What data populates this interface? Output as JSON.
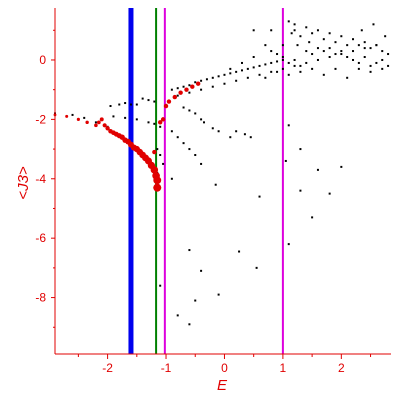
{
  "colors": {
    "axis": "#e00000",
    "black_points": "#000000",
    "red_points": "#e00000",
    "line_blue": "#0000ee",
    "line_green": "#008000",
    "line_magenta": "#dd00dd",
    "background": "#ffffff"
  },
  "chart_data": {
    "type": "scatter",
    "title": "",
    "xlabel": "E",
    "ylabel": "<J3>",
    "xlim": [
      -2.9,
      2.85
    ],
    "ylim": [
      -9.9,
      1.75
    ],
    "x_ticks": [
      -2,
      -1,
      0,
      1,
      2
    ],
    "y_ticks": [
      0,
      -2,
      -4,
      -6,
      -8
    ],
    "grid": false,
    "vertical_lines": [
      {
        "x": -1.6,
        "color": "#0000ee",
        "width": "thick"
      },
      {
        "x": -1.17,
        "color": "#008000",
        "width": "thin"
      },
      {
        "x": -1.02,
        "color": "#dd00dd",
        "width": "thin"
      },
      {
        "x": 1.0,
        "color": "#dd00dd",
        "width": "thin"
      }
    ],
    "series": [
      {
        "marker": "small dot",
        "color": "#000000",
        "points": [
          [
            -2.9,
            -1.8
          ],
          [
            -2.6,
            -1.85
          ],
          [
            -2.4,
            -1.95
          ],
          [
            -2.2,
            -2.1
          ],
          [
            -2.0,
            -2.25
          ],
          [
            -1.95,
            -1.55
          ],
          [
            -1.8,
            -1.5
          ],
          [
            -1.7,
            -1.45
          ],
          [
            -1.6,
            -1.5
          ],
          [
            -1.5,
            -1.5
          ],
          [
            -1.9,
            -1.9
          ],
          [
            -1.7,
            -1.95
          ],
          [
            -1.5,
            -2.0
          ],
          [
            -1.3,
            -2.1
          ],
          [
            -1.2,
            -2.15
          ],
          [
            -1.1,
            -2.25
          ],
          [
            -1.4,
            -1.3
          ],
          [
            -1.3,
            -1.35
          ],
          [
            -1.2,
            -1.4
          ],
          [
            -1.15,
            -3.0
          ],
          [
            -1.1,
            -3.2
          ],
          [
            -1.05,
            -3.5
          ],
          [
            -1.15,
            -3.8
          ],
          [
            -0.9,
            -4.0
          ],
          [
            -1.1,
            -7.6
          ],
          [
            -0.8,
            -8.6
          ],
          [
            -0.6,
            -8.9
          ],
          [
            -0.6,
            -6.4
          ],
          [
            -0.5,
            -8.1
          ],
          [
            -0.4,
            -7.1
          ],
          [
            -0.15,
            -4.2
          ],
          [
            -0.1,
            -7.9
          ],
          [
            0.25,
            -6.45
          ],
          [
            0.55,
            -7.0
          ],
          [
            0.6,
            -4.6
          ],
          [
            1.1,
            -6.2
          ],
          [
            1.3,
            -4.4
          ],
          [
            1.5,
            -5.3
          ],
          [
            1.6,
            -3.7
          ],
          [
            1.8,
            -4.5
          ],
          [
            2.0,
            -3.6
          ],
          [
            -0.9,
            -1.0
          ],
          [
            -0.8,
            -0.95
          ],
          [
            -0.7,
            -0.9
          ],
          [
            -0.6,
            -0.85
          ],
          [
            -0.5,
            -0.75
          ],
          [
            -0.4,
            -0.7
          ],
          [
            -0.3,
            -0.65
          ],
          [
            -0.2,
            -0.6
          ],
          [
            -0.1,
            -0.55
          ],
          [
            0.0,
            -0.5
          ],
          [
            0.1,
            -0.45
          ],
          [
            0.2,
            -0.4
          ],
          [
            0.3,
            -0.35
          ],
          [
            0.4,
            -0.3
          ],
          [
            0.5,
            -0.25
          ],
          [
            0.6,
            -0.2
          ],
          [
            0.7,
            -0.15
          ],
          [
            0.8,
            -0.1
          ],
          [
            0.9,
            -0.05
          ],
          [
            1.0,
            0.0
          ],
          [
            -0.8,
            -1.2
          ],
          [
            -0.6,
            -1.1
          ],
          [
            -0.4,
            -1.0
          ],
          [
            -0.2,
            -0.9
          ],
          [
            0.0,
            -0.8
          ],
          [
            0.2,
            -0.7
          ],
          [
            0.4,
            -0.6
          ],
          [
            0.6,
            -0.5
          ],
          [
            0.8,
            -0.4
          ],
          [
            1.0,
            -0.3
          ],
          [
            1.2,
            -0.2
          ],
          [
            1.4,
            -0.1
          ],
          [
            1.6,
            0.0
          ],
          [
            1.8,
            0.1
          ],
          [
            2.0,
            0.2
          ],
          [
            2.2,
            0.3
          ],
          [
            2.4,
            0.4
          ],
          [
            2.6,
            0.5
          ],
          [
            -0.7,
            -1.6
          ],
          [
            -0.6,
            -1.7
          ],
          [
            -0.5,
            -1.8
          ],
          [
            -0.4,
            -2.0
          ],
          [
            -0.35,
            -2.1
          ],
          [
            -0.2,
            -2.3
          ],
          [
            -0.1,
            -2.4
          ],
          [
            0.1,
            -2.6
          ],
          [
            0.2,
            -2.4
          ],
          [
            0.35,
            -2.5
          ],
          [
            0.45,
            -2.6
          ],
          [
            -0.9,
            -2.4
          ],
          [
            -0.8,
            -2.6
          ],
          [
            -0.7,
            -2.8
          ],
          [
            -0.6,
            -3.0
          ],
          [
            -0.5,
            -3.2
          ],
          [
            -0.4,
            -3.5
          ],
          [
            1.0,
            0.5
          ],
          [
            1.1,
            1.3
          ],
          [
            1.15,
            0.9
          ],
          [
            1.2,
            1.0
          ],
          [
            1.3,
            0.8
          ],
          [
            1.4,
            1.1
          ],
          [
            1.5,
            0.9
          ],
          [
            1.6,
            1.0
          ],
          [
            1.7,
            0.7
          ],
          [
            1.8,
            0.9
          ],
          [
            1.9,
            0.6
          ],
          [
            2.0,
            0.8
          ],
          [
            2.1,
            0.5
          ],
          [
            2.2,
            0.7
          ],
          [
            2.3,
            0.5
          ],
          [
            2.4,
            0.6
          ],
          [
            2.5,
            0.4
          ],
          [
            2.6,
            0.5
          ],
          [
            2.7,
            0.3
          ],
          [
            2.8,
            0.2
          ],
          [
            0.7,
            0.5
          ],
          [
            0.8,
            0.3
          ],
          [
            0.9,
            0.2
          ],
          [
            1.0,
            0.1
          ],
          [
            1.1,
            -0.1
          ],
          [
            1.2,
            0.0
          ],
          [
            1.3,
            -0.2
          ],
          [
            1.4,
            0.3
          ],
          [
            1.5,
            0.2
          ],
          [
            1.6,
            0.4
          ],
          [
            1.7,
            0.3
          ],
          [
            1.8,
            0.4
          ],
          [
            1.9,
            0.2
          ],
          [
            2.0,
            0.3
          ],
          [
            2.1,
            0.1
          ],
          [
            2.2,
            0.0
          ],
          [
            2.3,
            -0.1
          ],
          [
            2.4,
            0.1
          ],
          [
            2.5,
            -0.2
          ],
          [
            2.6,
            -0.1
          ],
          [
            2.7,
            0.0
          ],
          [
            2.8,
            -0.2
          ],
          [
            0.1,
            -0.3
          ],
          [
            0.3,
            -0.1
          ],
          [
            0.5,
            0.1
          ],
          [
            0.7,
            -0.6
          ],
          [
            0.9,
            -0.4
          ],
          [
            1.1,
            -0.5
          ],
          [
            1.3,
            -0.4
          ],
          [
            1.5,
            -0.3
          ],
          [
            1.7,
            -0.5
          ],
          [
            1.9,
            -0.3
          ],
          [
            2.1,
            -0.6
          ],
          [
            2.3,
            -0.3
          ],
          [
            2.5,
            -0.4
          ],
          [
            2.7,
            -0.3
          ],
          [
            0.5,
            1.0
          ],
          [
            0.8,
            1.0
          ],
          [
            1.2,
            1.2
          ],
          [
            1.25,
            0.5
          ],
          [
            1.45,
            0.6
          ],
          [
            2.35,
            1.0
          ],
          [
            2.55,
            1.2
          ],
          [
            2.75,
            0.8
          ],
          [
            1.1,
            -2.2
          ],
          [
            1.3,
            -3.0
          ],
          [
            1.05,
            -3.4
          ]
        ]
      },
      {
        "marker": "red dot, growing",
        "color": "#e00000",
        "points": [
          [
            -2.9,
            -1.85
          ],
          [
            -2.7,
            -1.9
          ],
          [
            -2.5,
            -2.0
          ],
          [
            -2.35,
            -2.1
          ],
          [
            -2.2,
            -2.2
          ],
          [
            -2.15,
            -2.1
          ],
          [
            -2.1,
            -2.0
          ],
          [
            -2.05,
            -2.2
          ],
          [
            -2.0,
            -2.3
          ],
          [
            -1.95,
            -2.4
          ],
          [
            -1.9,
            -2.45
          ],
          [
            -1.85,
            -2.5
          ],
          [
            -1.8,
            -2.55
          ],
          [
            -1.75,
            -2.6
          ],
          [
            -1.7,
            -2.7
          ],
          [
            -1.65,
            -2.75
          ],
          [
            -1.6,
            -2.85
          ],
          [
            -1.55,
            -2.95
          ],
          [
            -1.5,
            -3.0
          ],
          [
            -1.45,
            -3.1
          ],
          [
            -1.4,
            -3.2
          ],
          [
            -1.35,
            -3.3
          ],
          [
            -1.3,
            -3.4
          ],
          [
            -1.25,
            -3.55
          ],
          [
            -1.2,
            -3.7
          ],
          [
            -1.17,
            -3.9
          ],
          [
            -1.15,
            -4.05
          ],
          [
            -1.15,
            -4.3
          ],
          [
            -1.2,
            -3.1
          ],
          [
            -1.1,
            -2.1
          ],
          [
            -1.05,
            -2.0
          ],
          [
            -1.0,
            -1.55
          ],
          [
            -0.95,
            -1.4
          ],
          [
            -0.85,
            -1.25
          ],
          [
            -0.75,
            -1.1
          ],
          [
            -0.65,
            -1.0
          ],
          [
            -0.55,
            -0.9
          ],
          [
            -0.45,
            -0.8
          ]
        ]
      }
    ]
  }
}
